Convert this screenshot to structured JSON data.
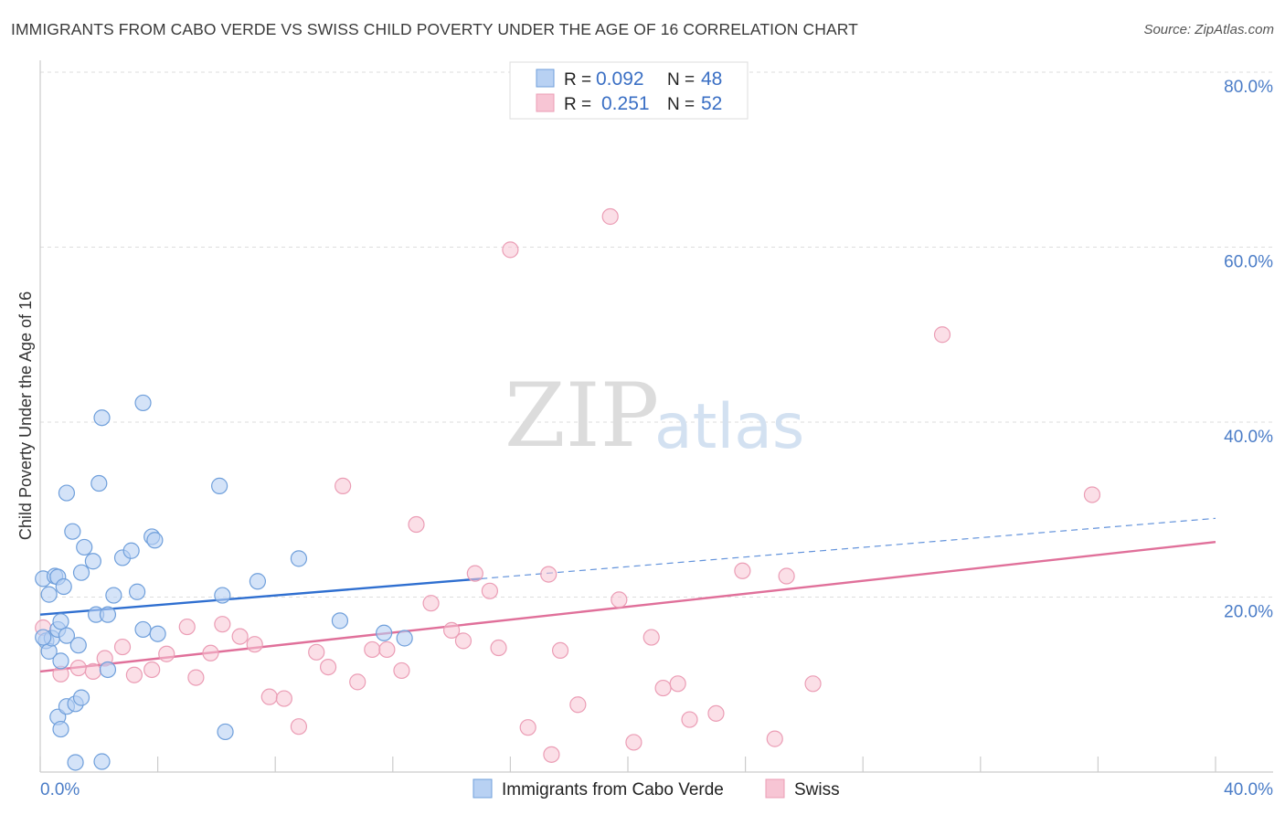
{
  "header": {
    "title": "IMMIGRANTS FROM CABO VERDE VS SWISS CHILD POVERTY UNDER THE AGE OF 16 CORRELATION CHART",
    "source": "Source: ZipAtlas.com"
  },
  "watermark": {
    "part1": "ZIP",
    "part2": "atlas"
  },
  "colors": {
    "blue_fill": "#b8d1f3",
    "blue_stroke": "#6f9fdb",
    "blue_line": "#2f6fd0",
    "pink_fill": "#f7c5d4",
    "pink_stroke": "#eb9db5",
    "pink_line": "#e0709a",
    "grid": "#dddddd",
    "axis_text": "#4a7cc7"
  },
  "legend_top": {
    "rows": [
      {
        "r_label": "R =",
        "r_value": "0.092",
        "n_label": "N =",
        "n_value": "48"
      },
      {
        "r_label": "R =",
        "r_value": "0.251",
        "n_label": "N =",
        "n_value": "52"
      }
    ]
  },
  "legend_bottom": {
    "series1": "Immigrants from Cabo Verde",
    "series2": "Swiss"
  },
  "chart_data": {
    "type": "scatter",
    "title": "IMMIGRANTS FROM CABO VERDE VS SWISS CHILD POVERTY UNDER THE AGE OF 16 CORRELATION CHART",
    "xlabel": "",
    "ylabel": "Child Poverty Under the Age of 16",
    "xlim": [
      0,
      40
    ],
    "ylim": [
      0,
      80
    ],
    "x_ticks": [
      0,
      4,
      8,
      12,
      16,
      20,
      24,
      28,
      32,
      36,
      40
    ],
    "x_tick_labels": {
      "0": "0.0%",
      "40": "40.0%"
    },
    "y_ticks": [
      20,
      40,
      60,
      80
    ],
    "y_tick_labels": [
      "20.0%",
      "40.0%",
      "60.0%",
      "80.0%"
    ],
    "grid": true,
    "series": [
      {
        "name": "Immigrants from Cabo Verde",
        "R": 0.092,
        "N": 48,
        "trend": {
          "x0": 0,
          "y0": 18.0,
          "x1": 15,
          "y1": 22.1,
          "dashed_to_x": 40,
          "dashed_to_y": 29.0
        },
        "points": [
          [
            0.1,
            22.1
          ],
          [
            0.2,
            15.0
          ],
          [
            0.3,
            20.3
          ],
          [
            0.3,
            13.8
          ],
          [
            0.4,
            15.3
          ],
          [
            0.5,
            22.4
          ],
          [
            0.6,
            16.3
          ],
          [
            0.6,
            22.3
          ],
          [
            0.6,
            6.3
          ],
          [
            0.7,
            17.2
          ],
          [
            0.7,
            12.7
          ],
          [
            0.7,
            4.9
          ],
          [
            0.8,
            21.2
          ],
          [
            0.9,
            7.5
          ],
          [
            0.9,
            31.9
          ],
          [
            0.9,
            15.6
          ],
          [
            1.1,
            27.5
          ],
          [
            1.2,
            7.8
          ],
          [
            1.2,
            1.1
          ],
          [
            1.3,
            14.5
          ],
          [
            1.4,
            8.5
          ],
          [
            1.4,
            22.8
          ],
          [
            1.5,
            25.7
          ],
          [
            1.8,
            24.1
          ],
          [
            1.9,
            18.0
          ],
          [
            2.0,
            33.0
          ],
          [
            2.1,
            40.5
          ],
          [
            2.1,
            1.2
          ],
          [
            2.3,
            11.7
          ],
          [
            2.3,
            18.0
          ],
          [
            2.5,
            20.2
          ],
          [
            2.8,
            24.5
          ],
          [
            3.1,
            25.3
          ],
          [
            3.3,
            20.6
          ],
          [
            3.5,
            42.2
          ],
          [
            3.5,
            16.3
          ],
          [
            3.8,
            26.9
          ],
          [
            3.9,
            26.5
          ],
          [
            4.0,
            15.8
          ],
          [
            6.1,
            32.7
          ],
          [
            6.2,
            20.2
          ],
          [
            6.3,
            4.6
          ],
          [
            7.4,
            21.8
          ],
          [
            8.8,
            24.4
          ],
          [
            10.2,
            17.3
          ],
          [
            11.7,
            15.9
          ],
          [
            12.4,
            15.3
          ],
          [
            0.1,
            15.4
          ]
        ]
      },
      {
        "name": "Swiss",
        "R": 0.251,
        "N": 52,
        "trend": {
          "x0": 0,
          "y0": 11.5,
          "x1": 40,
          "y1": 26.3
        },
        "points": [
          [
            0.1,
            16.5
          ],
          [
            0.7,
            11.2
          ],
          [
            1.3,
            11.9
          ],
          [
            1.8,
            11.5
          ],
          [
            2.2,
            13.0
          ],
          [
            2.8,
            14.3
          ],
          [
            3.2,
            11.1
          ],
          [
            3.8,
            11.7
          ],
          [
            4.3,
            13.5
          ],
          [
            5.0,
            16.6
          ],
          [
            5.3,
            10.8
          ],
          [
            5.8,
            13.6
          ],
          [
            6.2,
            16.9
          ],
          [
            6.8,
            15.5
          ],
          [
            7.3,
            14.6
          ],
          [
            7.8,
            8.6
          ],
          [
            8.3,
            8.4
          ],
          [
            8.8,
            5.2
          ],
          [
            9.4,
            13.7
          ],
          [
            9.8,
            12.0
          ],
          [
            10.3,
            32.7
          ],
          [
            10.8,
            10.3
          ],
          [
            11.3,
            14.0
          ],
          [
            11.8,
            14.0
          ],
          [
            12.3,
            11.6
          ],
          [
            12.8,
            28.3
          ],
          [
            13.3,
            19.3
          ],
          [
            14.0,
            16.2
          ],
          [
            14.4,
            15.0
          ],
          [
            14.8,
            22.7
          ],
          [
            15.3,
            20.7
          ],
          [
            15.6,
            14.2
          ],
          [
            16.0,
            59.7
          ],
          [
            16.6,
            5.1
          ],
          [
            17.3,
            22.6
          ],
          [
            17.4,
            2.0
          ],
          [
            17.7,
            13.9
          ],
          [
            18.3,
            7.7
          ],
          [
            19.4,
            63.5
          ],
          [
            19.7,
            19.7
          ],
          [
            20.2,
            3.4
          ],
          [
            20.8,
            15.4
          ],
          [
            21.2,
            9.6
          ],
          [
            21.7,
            10.1
          ],
          [
            22.1,
            6.0
          ],
          [
            23.0,
            6.7
          ],
          [
            23.9,
            23.0
          ],
          [
            25.0,
            3.8
          ],
          [
            25.4,
            22.4
          ],
          [
            26.3,
            10.1
          ],
          [
            30.7,
            50.0
          ],
          [
            35.8,
            31.7
          ]
        ]
      }
    ]
  }
}
